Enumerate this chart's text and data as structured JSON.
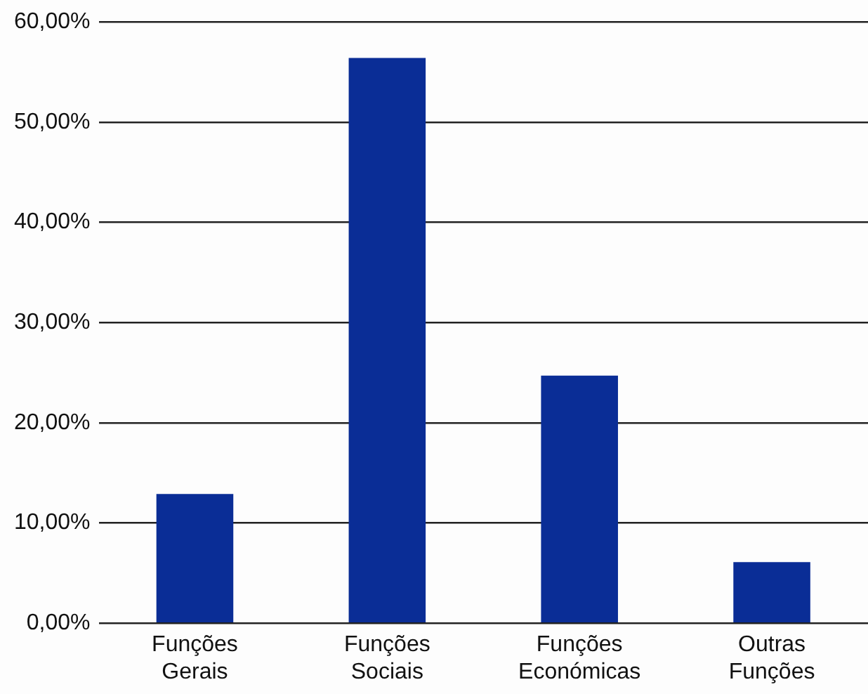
{
  "chart_data": {
    "type": "bar",
    "categories": [
      "Funções Gerais",
      "Funções Sociais",
      "Funções Económicas",
      "Outras Funções"
    ],
    "values": [
      12.9,
      56.4,
      24.7,
      6.1
    ],
    "color": "#0a2d96",
    "ylim": [
      0,
      60
    ],
    "yticks": [
      {
        "value": 0,
        "label": "0,00%"
      },
      {
        "value": 10,
        "label": "10,00%"
      },
      {
        "value": 20,
        "label": "20,00%"
      },
      {
        "value": 30,
        "label": "30,00%"
      },
      {
        "value": 40,
        "label": "40,00%"
      },
      {
        "value": 50,
        "label": "50,00%"
      },
      {
        "value": 60,
        "label": "60,00%"
      }
    ],
    "grid": "y"
  }
}
